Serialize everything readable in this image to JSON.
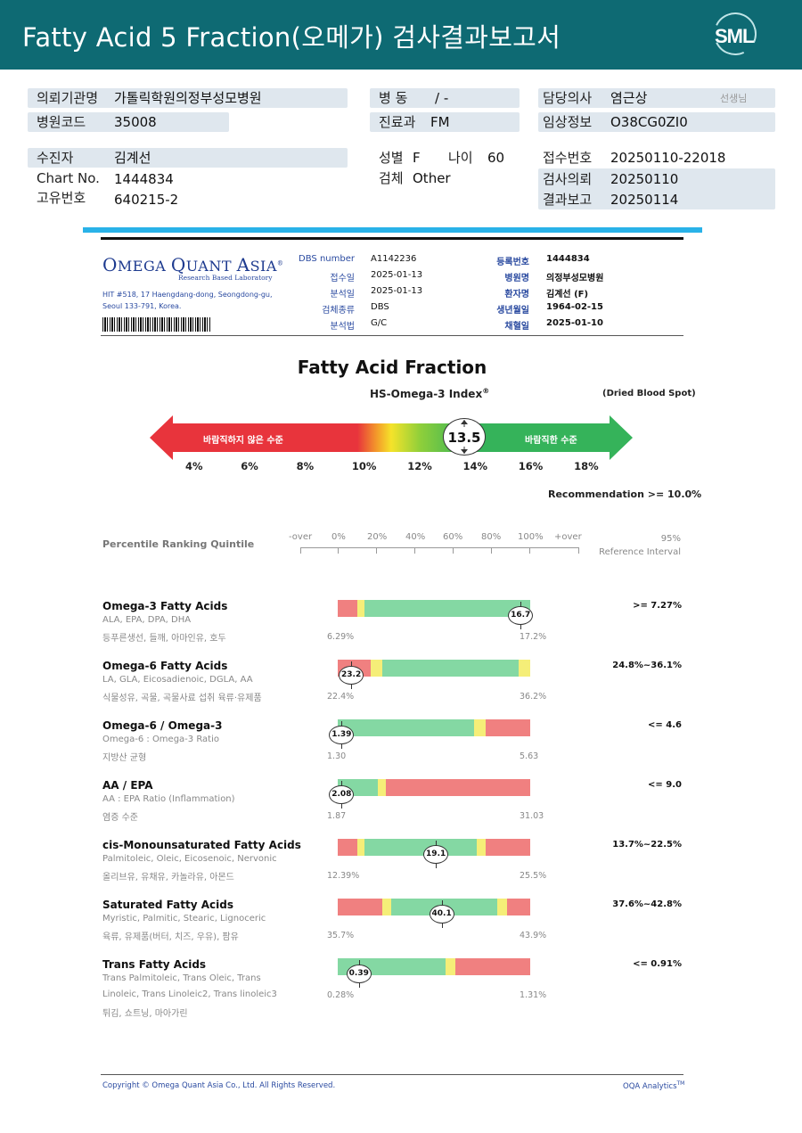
{
  "header": {
    "title": "Fatty Acid 5 Fraction(오메가) 검사결과보고서",
    "logo_text": "SML"
  },
  "patient": {
    "inst_label": "의뢰기관명",
    "inst_value": "가톨릭학원의정부성모병원",
    "code_label": "병원코드",
    "code_value": "35008",
    "ward_label": "병 동",
    "ward_value": "/ -",
    "dept_label": "진료과",
    "dept_value": "FM",
    "doctor_label": "담당의사",
    "doctor_value": "염근상",
    "doctor_suffix": "선생님",
    "clinical_label": "임상정보",
    "clinical_value": "O38CG0ZI0",
    "name_label": "수진자",
    "name_value": "김계선",
    "chart_label": "Chart No.",
    "chart_value": "1444834",
    "id_label": "고유번호",
    "id_value": "640215-2",
    "sex_label": "성별",
    "sex_value": "F",
    "age_label": "나이",
    "age_value": "60",
    "specimen_label": "검체",
    "specimen_value": "Other",
    "receipt_label": "접수번호",
    "receipt_value": "20250110-22018",
    "request_label": "검사의뢰",
    "request_value": "20250110",
    "report_label": "결과보고",
    "report_value": "20250114"
  },
  "lab": {
    "name_first": "O",
    "name_rest1": "MEGA ",
    "name_q": "Q",
    "name_rest2": "UANT ",
    "name_a": "A",
    "name_rest3": "SIA",
    "registered": "®",
    "tagline": "Research Based Laboratory",
    "address1": "HIT #518, 17 Haengdang-dong, Seongdong-gu,",
    "address2": "Seoul 133-791, Korea.",
    "fields_left": [
      {
        "label": "DBS number",
        "value": "A1142236"
      },
      {
        "label": "접수일",
        "value": "2025-01-13"
      },
      {
        "label": "분석일",
        "value": "2025-01-13"
      },
      {
        "label": "검체종류",
        "value": "DBS"
      },
      {
        "label": "분석법",
        "value": "G/C"
      }
    ],
    "fields_right": [
      {
        "label": "등록번호",
        "value": "1444834"
      },
      {
        "label": "병원명",
        "value": "의정부성모병원"
      },
      {
        "label": "환자명",
        "value": "김계선 (F)"
      },
      {
        "label": "생년월일",
        "value": "1964-02-15"
      },
      {
        "label": "채혈일",
        "value": "2025-01-10"
      }
    ]
  },
  "omega_index": {
    "section_title": "Fatty Acid Fraction",
    "title": "HS-Omega-3 Index",
    "title_sup": "®",
    "specimen_note": "(Dried Blood Spot)",
    "value": "13.5",
    "value_num": 13.5,
    "left_text": "바람직하지 않은 수준",
    "right_text": "바람직한 수준",
    "ticks": [
      "4%",
      "6%",
      "8%",
      "10%",
      "12%",
      "14%",
      "16%",
      "18%"
    ],
    "recommendation": "Recommendation  >= 10.0%"
  },
  "ranking": {
    "label": "Percentile Ranking Quintile",
    "scale": [
      "-over",
      "0%",
      "20%",
      "40%",
      "60%",
      "80%",
      "100%",
      "+over"
    ],
    "ref_head_1": "95%",
    "ref_head_2": "Reference Interval"
  },
  "rows": [
    {
      "name": "Omega-3 Fatty Acids",
      "sub": "ALA, EPA, DPA, DHA",
      "food": "등푸른생선, 들깨, 아마인유, 호두",
      "value": "16.7",
      "min": "6.29%",
      "max": "17.2%",
      "ref": ">= 7.27%",
      "marker_pct": 95,
      "segments": [
        [
          "#f08080",
          0,
          10
        ],
        [
          "#f5ee78",
          10,
          14
        ],
        [
          "#84d8a3",
          14,
          100
        ]
      ]
    },
    {
      "name": "Omega-6 Fatty Acids",
      "sub": "LA, GLA, Eicosadienoic, DGLA, AA",
      "food": "식물성유, 곡물, 곡물사료 섭취 육류·유제품",
      "value": "23.2",
      "min": "22.4%",
      "max": "36.2%",
      "ref": "24.8%~36.1%",
      "marker_pct": 7,
      "segments": [
        [
          "#f08080",
          0,
          17
        ],
        [
          "#f5ee78",
          17,
          23
        ],
        [
          "#84d8a3",
          23,
          94
        ],
        [
          "#f5ee78",
          94,
          100
        ]
      ]
    },
    {
      "name": "Omega-6 / Omega-3",
      "sub": "Omega-6 : Omega-3 Ratio",
      "food": "지방산 균형",
      "value": "1.39",
      "min": "1.30",
      "max": "5.63",
      "ref": "<= 4.6",
      "marker_pct": 2,
      "segments": [
        [
          "#84d8a3",
          0,
          71
        ],
        [
          "#f5ee78",
          71,
          77
        ],
        [
          "#f08080",
          77,
          100
        ]
      ]
    },
    {
      "name": "AA / EPA",
      "sub": "AA : EPA Ratio (Inflammation)",
      "food": "염증 수준",
      "value": "2.08",
      "min": "1.87",
      "max": "31.03",
      "ref": "<= 9.0",
      "marker_pct": 2,
      "segments": [
        [
          "#84d8a3",
          0,
          21
        ],
        [
          "#f5ee78",
          21,
          25
        ],
        [
          "#f08080",
          25,
          100
        ]
      ]
    },
    {
      "name": "cis-Monounsaturated Fatty Acids",
      "sub": "Palmitoleic, Oleic, Eicosenoic, Nervonic",
      "food": "올리브유, 유채유, 카놀라유, 아몬드",
      "value": "19.1",
      "min": "12.39%",
      "max": "25.5%",
      "ref": "13.7%~22.5%",
      "marker_pct": 51,
      "segments": [
        [
          "#f08080",
          0,
          10
        ],
        [
          "#f5ee78",
          10,
          14
        ],
        [
          "#84d8a3",
          14,
          72
        ],
        [
          "#f5ee78",
          72,
          77
        ],
        [
          "#f08080",
          77,
          100
        ]
      ]
    },
    {
      "name": "Saturated Fatty Acids",
      "sub": "Myristic, Palmitic, Stearic, Lignoceric",
      "food": "육류, 유제품(버터, 치즈, 우유), 팜유",
      "value": "40.1",
      "min": "35.7%",
      "max": "43.9%",
      "ref": "37.6%~42.8%",
      "marker_pct": 54,
      "segments": [
        [
          "#f08080",
          0,
          23
        ],
        [
          "#f5ee78",
          23,
          28
        ],
        [
          "#84d8a3",
          28,
          83
        ],
        [
          "#f5ee78",
          83,
          88
        ],
        [
          "#f08080",
          88,
          100
        ]
      ]
    },
    {
      "name": "Trans Fatty Acids",
      "sub": "Trans Palmitoleic, Trans Oleic, Trans",
      "sub2": "Linoleic, Trans Linoleic2, Trans linoleic3",
      "food": "튀김, 쇼트닝, 마아가린",
      "value": "0.39",
      "min": "0.28%",
      "max": "1.31%",
      "ref": "<= 0.91%",
      "marker_pct": 11,
      "segments": [
        [
          "#84d8a3",
          0,
          56
        ],
        [
          "#f5ee78",
          56,
          61
        ],
        [
          "#f08080",
          61,
          100
        ]
      ]
    }
  ],
  "footer": {
    "copyright": "Copyright © Omega Quant Asia Co., Ltd.  All Rights Reserved.",
    "brand": "OQA Analytics",
    "brand_sup": "TM"
  }
}
